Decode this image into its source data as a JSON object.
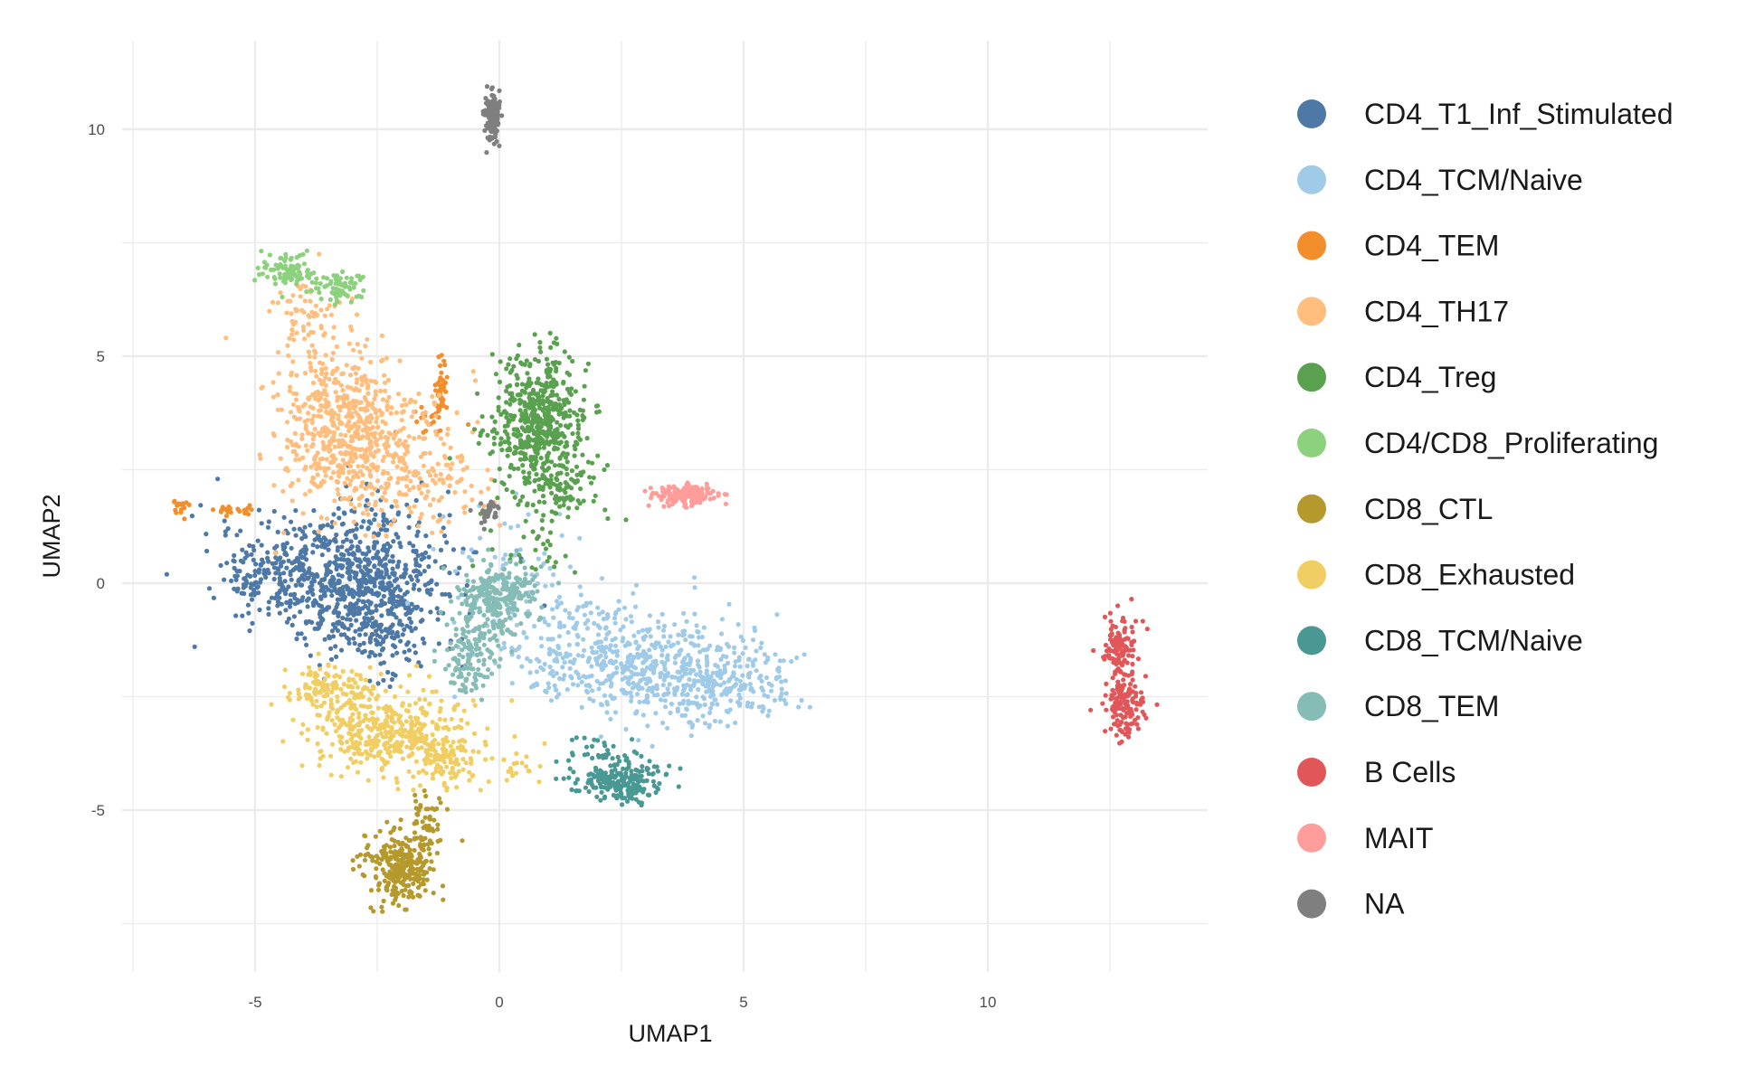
{
  "chart_data": {
    "type": "scatter",
    "title": "",
    "xlabel": "UMAP1",
    "ylabel": "UMAP2",
    "xlim": [
      -7.5,
      14.5
    ],
    "ylim": [
      -8.5,
      11.9
    ],
    "x_ticks": [
      -5,
      0,
      5,
      10
    ],
    "y_ticks": [
      -5,
      0,
      5,
      10
    ],
    "grid": true,
    "legend_position": "right",
    "series": [
      {
        "name": "CD4_T1_Inf_Stimulated",
        "color": "#4E79A7",
        "clusters": [
          [
            -3.6,
            0.2,
            1.3,
            0.8,
            520
          ],
          [
            -2.4,
            0.1,
            0.9,
            1.0,
            300
          ],
          [
            -2.7,
            -1.0,
            0.6,
            0.6,
            140
          ],
          [
            -5.0,
            0.0,
            0.25,
            0.35,
            40
          ]
        ]
      },
      {
        "name": "CD4_TCM/Naive",
        "color": "#A0CBE8",
        "clusters": [
          [
            3.0,
            -1.8,
            1.4,
            0.75,
            420
          ],
          [
            4.5,
            -2.2,
            0.8,
            0.5,
            220
          ],
          [
            1.6,
            -1.3,
            0.8,
            0.8,
            120
          ],
          [
            0.2,
            0.2,
            0.9,
            1.0,
            60
          ]
        ]
      },
      {
        "name": "CD4_TEM",
        "color": "#F28E2B",
        "clusters": [
          [
            -1.2,
            4.2,
            0.07,
            0.45,
            45
          ],
          [
            -6.5,
            1.7,
            0.12,
            0.1,
            18
          ],
          [
            -5.5,
            1.6,
            0.35,
            0.06,
            22
          ],
          [
            -1.5,
            3.5,
            0.4,
            0.3,
            15
          ]
        ]
      },
      {
        "name": "CD4_TH17",
        "color": "#FFBE7D",
        "clusters": [
          [
            -3.3,
            3.5,
            0.75,
            1.1,
            500
          ],
          [
            -2.2,
            2.8,
            0.9,
            0.9,
            220
          ],
          [
            -3.9,
            5.8,
            0.35,
            0.6,
            60
          ],
          [
            -1.2,
            2.3,
            0.6,
            0.5,
            60
          ]
        ]
      },
      {
        "name": "CD4_Treg",
        "color": "#59A14F",
        "clusters": [
          [
            0.8,
            3.6,
            0.55,
            0.85,
            520
          ],
          [
            1.1,
            2.2,
            0.6,
            0.6,
            120
          ],
          [
            0.6,
            0.8,
            0.6,
            0.6,
            30
          ]
        ]
      },
      {
        "name": "CD4/CD8_Proliferating",
        "color": "#8CD17D",
        "clusters": [
          [
            -4.4,
            6.9,
            0.3,
            0.2,
            90
          ],
          [
            -3.3,
            6.5,
            0.35,
            0.2,
            70
          ]
        ]
      },
      {
        "name": "CD8_CTL",
        "color": "#B6992D",
        "clusters": [
          [
            -2.0,
            -6.2,
            0.4,
            0.5,
            300
          ],
          [
            -1.5,
            -5.2,
            0.2,
            0.4,
            40
          ]
        ]
      },
      {
        "name": "CD8_Exhausted",
        "color": "#F1CE63",
        "clusters": [
          [
            -2.2,
            -3.3,
            0.9,
            0.55,
            420
          ],
          [
            -3.6,
            -2.3,
            0.5,
            0.3,
            120
          ],
          [
            -1.0,
            -3.9,
            0.4,
            0.35,
            90
          ],
          [
            0.4,
            -4.0,
            0.4,
            0.2,
            20
          ]
        ]
      },
      {
        "name": "CD8_TCM/Naive",
        "color": "#499894",
        "clusters": [
          [
            2.5,
            -4.4,
            0.5,
            0.25,
            200
          ],
          [
            2.0,
            -3.8,
            0.5,
            0.25,
            40
          ]
        ]
      },
      {
        "name": "CD8_TEM",
        "color": "#86BCB6",
        "clusters": [
          [
            -0.1,
            -0.4,
            0.45,
            0.5,
            260
          ],
          [
            -0.6,
            -1.6,
            0.35,
            0.5,
            120
          ],
          [
            0.6,
            0.0,
            0.4,
            0.3,
            30
          ]
        ]
      },
      {
        "name": "B Cells",
        "color": "#E15759",
        "clusters": [
          [
            12.7,
            -1.4,
            0.2,
            0.4,
            120
          ],
          [
            12.8,
            -2.7,
            0.25,
            0.4,
            140
          ]
        ]
      },
      {
        "name": "MAIT",
        "color": "#FF9D9A",
        "clusters": [
          [
            3.8,
            1.95,
            0.35,
            0.12,
            200
          ]
        ]
      },
      {
        "name": "NA",
        "color": "#7F7F7F",
        "clusters": [
          [
            -0.15,
            10.3,
            0.09,
            0.35,
            160
          ],
          [
            -0.2,
            1.6,
            0.12,
            0.18,
            30
          ]
        ]
      }
    ]
  }
}
